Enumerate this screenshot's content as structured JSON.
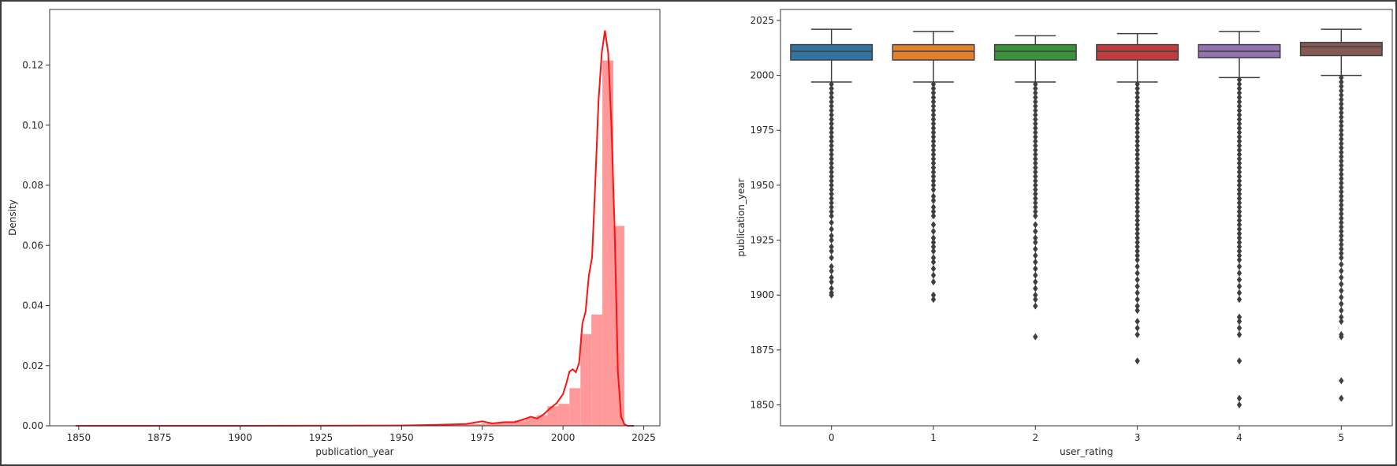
{
  "colors": {
    "hist_fill": "#ff9999",
    "kde_line": "#ff1111",
    "box_colors": [
      "#3274a1",
      "#e1812c",
      "#3a923a",
      "#c03d3e",
      "#9372b2",
      "#845b53"
    ],
    "whisker": "#3f3f3f",
    "axes_border": "#333333"
  },
  "chart_data": [
    {
      "type": "histogram",
      "xlabel": "publication_year",
      "ylabel": "Density",
      "xlim": [
        1841,
        2030
      ],
      "ylim": [
        0,
        0.1385
      ],
      "xticks": [
        1850,
        1875,
        1900,
        1925,
        1950,
        1975,
        2000,
        2025
      ],
      "yticks": [
        0.0,
        0.02,
        0.04,
        0.06,
        0.08,
        0.1,
        0.12
      ],
      "ytick_labels": [
        "0.00",
        "0.02",
        "0.04",
        "0.06",
        "0.08",
        "0.10",
        "0.12"
      ],
      "grid": false,
      "histogram": {
        "bin_edges": [
          1849.0,
          1852.4,
          1855.8,
          1859.2,
          1862.6,
          1866.0,
          1869.4,
          1872.8,
          1876.2,
          1879.6,
          1883.0,
          1886.4,
          1889.8,
          1893.2,
          1896.6,
          1900.0,
          1903.4,
          1906.8,
          1910.2,
          1913.6,
          1917.0,
          1920.4,
          1923.8,
          1927.2,
          1930.6,
          1934.0,
          1937.4,
          1940.8,
          1944.2,
          1947.6,
          1951.0,
          1954.4,
          1957.8,
          1961.2,
          1964.6,
          1968.0,
          1971.4,
          1974.8,
          1978.2,
          1981.6,
          1985.0,
          1988.4,
          1991.8,
          1995.2,
          1998.6,
          2002.0,
          2005.4,
          2008.8,
          2012.2,
          2015.6,
          2019.0
        ],
        "density": [
          0.0001,
          0.0,
          0.0,
          0.0,
          0.0,
          0.0,
          0.0,
          0.0,
          0.0,
          0.0,
          0.0,
          0.0,
          0.0,
          0.0,
          0.0,
          0.0001,
          0.0001,
          0.0001,
          0.0001,
          0.0001,
          0.0001,
          0.0001,
          0.0001,
          0.0001,
          0.0001,
          0.0001,
          0.0001,
          0.0001,
          0.0001,
          0.0001,
          0.0002,
          0.0002,
          0.0003,
          0.0003,
          0.0004,
          0.0005,
          0.0006,
          0.0008,
          0.001,
          0.0014,
          0.0018,
          0.0026,
          0.0035,
          0.0065,
          0.0073,
          0.0125,
          0.0305,
          0.037,
          0.1215,
          0.0665
        ]
      },
      "kde": {
        "x": [
          1849,
          1900,
          1950,
          1960,
          1970,
          1975,
          1978,
          1982,
          1985,
          1988,
          1990,
          1992,
          1994,
          1996,
          1998,
          2000,
          2001,
          2002,
          2003,
          2004,
          2005,
          2006,
          2007,
          2008,
          2009,
          2010,
          2011,
          2012,
          2013,
          2014,
          2015,
          2016,
          2017,
          2018,
          2019,
          2020,
          2022
        ],
        "y": [
          0.0,
          0.0,
          0.0001,
          0.0003,
          0.0006,
          0.0015,
          0.0008,
          0.0012,
          0.0012,
          0.0022,
          0.003,
          0.0024,
          0.0038,
          0.0058,
          0.0075,
          0.0105,
          0.014,
          0.018,
          0.0188,
          0.0178,
          0.021,
          0.034,
          0.038,
          0.05,
          0.056,
          0.081,
          0.108,
          0.124,
          0.1315,
          0.124,
          0.1,
          0.065,
          0.018,
          0.003,
          0.0005,
          0.0,
          0.0
        ]
      }
    },
    {
      "type": "box",
      "xlabel": "user_rating",
      "ylabel": "publication_year",
      "categories": [
        "0",
        "1",
        "2",
        "3",
        "4",
        "5"
      ],
      "ylim": [
        1840.5,
        2030
      ],
      "yticks": [
        1850,
        1875,
        1900,
        1925,
        1950,
        1975,
        2000,
        2025
      ],
      "grid": false,
      "boxes": [
        {
          "q1": 2007,
          "median": 2011,
          "q3": 2014,
          "whisker_low": 1997,
          "whisker_high": 2021,
          "outliers": [
            1996,
            1994,
            1992,
            1990,
            1988,
            1986,
            1984,
            1982,
            1980,
            1978,
            1976,
            1974,
            1972,
            1970,
            1968,
            1966,
            1964,
            1962,
            1960,
            1958,
            1956,
            1954,
            1952,
            1950,
            1948,
            1946,
            1944,
            1942,
            1940,
            1938,
            1936,
            1933,
            1930,
            1927,
            1925,
            1922,
            1920,
            1917,
            1913,
            1911,
            1908,
            1906,
            1903,
            1901,
            1900
          ]
        },
        {
          "q1": 2007,
          "median": 2011,
          "q3": 2014,
          "whisker_low": 1997,
          "whisker_high": 2020,
          "outliers": [
            1996,
            1994,
            1992,
            1990,
            1988,
            1986,
            1984,
            1982,
            1980,
            1978,
            1976,
            1974,
            1972,
            1970,
            1968,
            1966,
            1964,
            1962,
            1960,
            1958,
            1956,
            1954,
            1952,
            1950,
            1948,
            1945,
            1943,
            1940,
            1938,
            1936,
            1932,
            1929,
            1926,
            1924,
            1922,
            1920,
            1917,
            1915,
            1912,
            1909,
            1906,
            1900,
            1898
          ]
        },
        {
          "q1": 2007,
          "median": 2011,
          "q3": 2014,
          "whisker_low": 1997,
          "whisker_high": 2018,
          "outliers": [
            1996,
            1994,
            1992,
            1990,
            1988,
            1986,
            1984,
            1982,
            1980,
            1978,
            1976,
            1974,
            1972,
            1970,
            1968,
            1966,
            1964,
            1962,
            1960,
            1958,
            1956,
            1954,
            1952,
            1950,
            1948,
            1946,
            1944,
            1942,
            1940,
            1938,
            1936,
            1932,
            1929,
            1926,
            1924,
            1921,
            1918,
            1915,
            1912,
            1909,
            1906,
            1903,
            1900,
            1898,
            1895,
            1881
          ]
        },
        {
          "q1": 2007,
          "median": 2011,
          "q3": 2014,
          "whisker_low": 1997,
          "whisker_high": 2019,
          "outliers": [
            1996,
            1994,
            1992,
            1990,
            1988,
            1986,
            1984,
            1982,
            1980,
            1978,
            1976,
            1974,
            1972,
            1970,
            1968,
            1966,
            1964,
            1962,
            1960,
            1958,
            1956,
            1954,
            1952,
            1950,
            1948,
            1946,
            1944,
            1942,
            1940,
            1938,
            1936,
            1934,
            1932,
            1930,
            1928,
            1926,
            1924,
            1922,
            1920,
            1918,
            1916,
            1913,
            1910,
            1907,
            1904,
            1901,
            1898,
            1895,
            1893,
            1888,
            1885,
            1882,
            1870
          ]
        },
        {
          "q1": 2008,
          "median": 2011,
          "q3": 2014,
          "whisker_low": 1999,
          "whisker_high": 2020,
          "outliers": [
            1998,
            1996,
            1994,
            1992,
            1990,
            1988,
            1986,
            1984,
            1982,
            1980,
            1978,
            1976,
            1974,
            1972,
            1970,
            1968,
            1966,
            1964,
            1962,
            1960,
            1958,
            1956,
            1954,
            1952,
            1950,
            1948,
            1946,
            1944,
            1942,
            1940,
            1938,
            1936,
            1934,
            1932,
            1930,
            1928,
            1926,
            1924,
            1922,
            1920,
            1918,
            1916,
            1913,
            1910,
            1907,
            1904,
            1901,
            1898,
            1890,
            1888,
            1885,
            1882,
            1870,
            1853,
            1850
          ]
        },
        {
          "q1": 2009,
          "median": 2013,
          "q3": 2015,
          "whisker_low": 2000,
          "whisker_high": 2021,
          "outliers": [
            1999,
            1997,
            1995,
            1993,
            1991,
            1989,
            1987,
            1985,
            1983,
            1981,
            1979,
            1977,
            1975,
            1973,
            1971,
            1969,
            1967,
            1965,
            1963,
            1961,
            1959,
            1957,
            1955,
            1953,
            1951,
            1949,
            1947,
            1945,
            1943,
            1941,
            1939,
            1937,
            1935,
            1933,
            1931,
            1929,
            1927,
            1925,
            1923,
            1921,
            1919,
            1917,
            1914,
            1911,
            1908,
            1905,
            1902,
            1899,
            1896,
            1893,
            1890,
            1888,
            1882,
            1881,
            1861,
            1853
          ]
        }
      ]
    }
  ]
}
